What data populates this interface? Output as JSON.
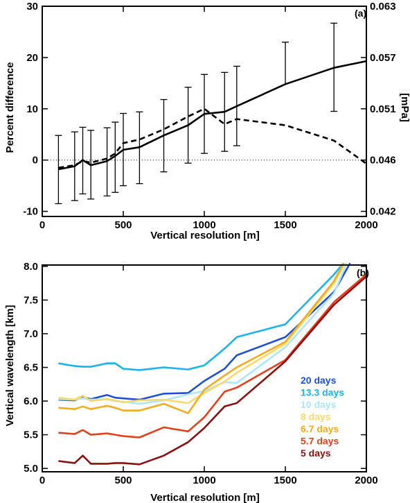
{
  "chart_data": [
    {
      "panel_label": "(a)",
      "type": "line",
      "xlabel": "Vertical resolution [m]",
      "ylabel": "Percent difference",
      "ylabel_right": "[mPa]",
      "xlim": [
        0,
        2000
      ],
      "ylim": [
        -11,
        30
      ],
      "x_ticks": [
        "0",
        "500",
        "1000",
        "1500",
        "2000"
      ],
      "y_ticks": [
        "-10",
        "0",
        "10",
        "20",
        "30"
      ],
      "y_ticks_right": [
        "0.042",
        "0.046",
        "0.051",
        "0.057",
        "0.063"
      ],
      "y_ticks_right_values": [
        -10,
        0,
        10,
        20,
        30
      ],
      "reference_line": 0,
      "series": [
        {
          "style": "solid",
          "x": [
            100,
            200,
            250,
            300,
            400,
            450,
            500,
            600,
            750,
            900,
            1000,
            1125,
            1200,
            1500,
            1800,
            2000
          ],
          "y": [
            -1.8,
            -1.2,
            0,
            -1,
            -0.2,
            0.8,
            2,
            2.5,
            4.8,
            6.8,
            9,
            9.4,
            10.5,
            14.8,
            18,
            19.3
          ],
          "error_low": [
            -8.5,
            -7.9,
            -6.6,
            -7.6,
            -7,
            -6.3,
            -5,
            -4.6,
            -2.3,
            -0.6,
            1.3,
            1.7,
            2.8,
            null,
            9.5,
            null
          ],
          "error_high": [
            4.8,
            5.5,
            6.4,
            5.8,
            6.3,
            7.4,
            9.1,
            9.4,
            11.8,
            14.2,
            16.7,
            17.1,
            18.3,
            23,
            26.7,
            null
          ]
        },
        {
          "style": "dashed",
          "x": [
            100,
            200,
            250,
            300,
            400,
            450,
            500,
            600,
            750,
            900,
            1000,
            1125,
            1200,
            1500,
            1800,
            2000
          ],
          "y": [
            -1.5,
            -1,
            -0.2,
            -0.5,
            0.3,
            1.3,
            3.3,
            4,
            6,
            8.5,
            10,
            7,
            8,
            6.8,
            3.8,
            -0.7
          ]
        }
      ]
    },
    {
      "panel_label": "(b)",
      "type": "line",
      "xlabel": "Vertical resolution [m]",
      "ylabel": "Vertical wavelength [km]",
      "xlim": [
        0,
        2000
      ],
      "ylim": [
        4.95,
        8.02
      ],
      "x_ticks": [
        "0",
        "500",
        "1000",
        "1500",
        "2000"
      ],
      "y_ticks": [
        "5.0",
        "5.5",
        "6.0",
        "6.5",
        "7.0",
        "7.5",
        "8.0"
      ],
      "legend_position": "right",
      "series": [
        {
          "name": "20 days",
          "color": "#1e4fd8",
          "x": [
            100,
            200,
            250,
            300,
            400,
            450,
            500,
            600,
            750,
            900,
            1000,
            1125,
            1200,
            1500,
            1800,
            1900
          ],
          "y": [
            6.02,
            6.01,
            6.06,
            6.03,
            6.09,
            6.05,
            6.04,
            6.02,
            6.11,
            6.12,
            6.3,
            6.48,
            6.68,
            6.95,
            7.62,
            8.05
          ]
        },
        {
          "name": "13.3 days",
          "color": "#18b4ec",
          "x": [
            100,
            200,
            250,
            300,
            400,
            450,
            500,
            600,
            750,
            900,
            1000,
            1125,
            1200,
            1500,
            1800,
            1860
          ],
          "y": [
            6.56,
            6.52,
            6.51,
            6.51,
            6.56,
            6.56,
            6.48,
            6.46,
            6.5,
            6.47,
            6.53,
            6.78,
            6.95,
            7.14,
            7.88,
            8.05
          ]
        },
        {
          "name": "10 days",
          "color": "#aee6f8",
          "x": [
            100,
            200,
            250,
            300,
            400,
            450,
            500,
            600,
            750,
            900,
            1000,
            1125,
            1200,
            1500,
            1800,
            1880
          ],
          "y": [
            6.03,
            6.02,
            6.04,
            6.02,
            6.03,
            6.0,
            5.99,
            5.96,
            6.01,
            6.1,
            6.15,
            6.28,
            6.27,
            6.8,
            7.6,
            8.05
          ]
        },
        {
          "name": "8 days",
          "color": "#fad96b",
          "x": [
            100,
            200,
            250,
            300,
            400,
            450,
            500,
            600,
            750,
            900,
            1000,
            1125,
            1200,
            1500,
            1800,
            1870
          ],
          "y": [
            6.05,
            6.02,
            6.08,
            6.0,
            6.03,
            6.01,
            5.98,
            6.01,
            6.02,
            5.97,
            6.12,
            6.29,
            6.42,
            6.85,
            7.75,
            8.05
          ]
        },
        {
          "name": "6.7 days",
          "color": "#f4ac1e",
          "x": [
            100,
            200,
            250,
            300,
            400,
            450,
            500,
            600,
            750,
            900,
            1000,
            1125,
            1200,
            1500,
            1800,
            1860
          ],
          "y": [
            5.9,
            5.88,
            5.92,
            5.88,
            5.93,
            5.9,
            5.86,
            5.86,
            5.96,
            5.82,
            6.17,
            6.38,
            6.5,
            6.88,
            7.78,
            8.05
          ]
        },
        {
          "name": "5.7 days",
          "color": "#e5401a",
          "x": [
            100,
            200,
            250,
            300,
            400,
            450,
            500,
            600,
            750,
            900,
            1000,
            1125,
            1200,
            1500,
            1800,
            2000
          ],
          "y": [
            5.53,
            5.51,
            5.57,
            5.5,
            5.52,
            5.5,
            5.48,
            5.46,
            5.61,
            5.55,
            5.76,
            6.14,
            6.2,
            6.61,
            7.47,
            7.88
          ]
        },
        {
          "name": "5 days",
          "color": "#8c1010",
          "x": [
            100,
            200,
            250,
            300,
            400,
            450,
            500,
            600,
            750,
            900,
            1000,
            1125,
            1200,
            1500,
            1800,
            2000
          ],
          "y": [
            5.11,
            5.08,
            5.19,
            5.07,
            5.07,
            5.08,
            5.08,
            5.06,
            5.19,
            5.39,
            5.6,
            5.92,
            5.97,
            6.59,
            7.43,
            7.85
          ]
        }
      ]
    }
  ]
}
